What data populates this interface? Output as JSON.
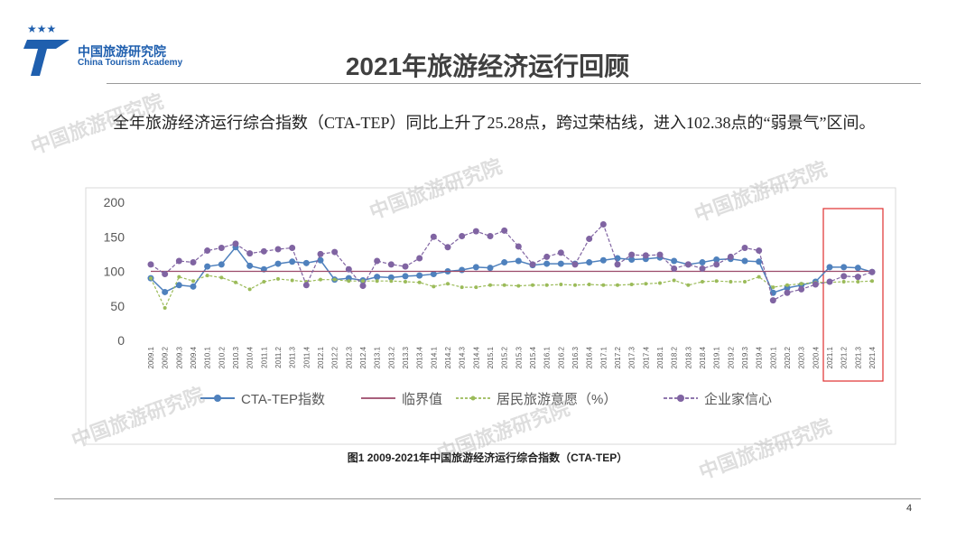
{
  "header": {
    "logo_cn": "中国旅游研究院",
    "logo_en": "China Tourism Academy",
    "title": "2021年旅游经济运行回顾"
  },
  "body": "全年旅游经济运行综合指数（CTA-TEP）同比上升了25.28点，跨过荣枯线，进入102.38点的“弱景气”区间。",
  "caption": "图1  2009-2021年中国旅游经济运行综合指数（CTA-TEP）",
  "page_number": "4",
  "watermark": "中国旅游研究院",
  "chart_data": {
    "type": "line",
    "categories": [
      "2009.1",
      "2009.2",
      "2009.3",
      "2009.4",
      "2010.1",
      "2010.2",
      "2010.3",
      "2010.4",
      "2011.1",
      "2011.2",
      "2011.3",
      "2011.4",
      "2012.1",
      "2012.2",
      "2012.3",
      "2012.4",
      "2013.1",
      "2013.2",
      "2013.3",
      "2013.4",
      "2014.1",
      "2014.2",
      "2014.3",
      "2014.4",
      "2015.1",
      "2015.2",
      "2015.3",
      "2015.4",
      "2016.1",
      "2016.2",
      "2016.3",
      "2016.4",
      "2017.1",
      "2017.2",
      "2017.3",
      "2017.4",
      "2018.1",
      "2018.2",
      "2018.3",
      "2018.4",
      "2019.1",
      "2019.2",
      "2019.3",
      "2019.4",
      "2020.1",
      "2020.2",
      "2020.3",
      "2020.4",
      "2021.1",
      "2021.2",
      "2021.3",
      "2021.4"
    ],
    "series": [
      {
        "name": "CTA-TEP指数",
        "color": "#4f81bd",
        "values": [
          90,
          70,
          80,
          78,
          107,
          110,
          135,
          108,
          103,
          111,
          114,
          112,
          116,
          88,
          90,
          87,
          92,
          91,
          93,
          94,
          96,
          100,
          102,
          106,
          105,
          113,
          115,
          109,
          111,
          111,
          111,
          113,
          116,
          119,
          117,
          118,
          120,
          115,
          110,
          113,
          117,
          118,
          115,
          114,
          69,
          76,
          80,
          85,
          106,
          106,
          105,
          99
        ]
      },
      {
        "name": "临界值",
        "color": "#9b4a6a",
        "values": [
          100,
          100,
          100,
          100,
          100,
          100,
          100,
          100,
          100,
          100,
          100,
          100,
          100,
          100,
          100,
          100,
          100,
          100,
          100,
          100,
          100,
          100,
          100,
          100,
          100,
          100,
          100,
          100,
          100,
          100,
          100,
          100,
          100,
          100,
          100,
          100,
          100,
          100,
          100,
          100,
          100,
          100,
          100,
          100,
          100,
          100,
          100,
          100,
          100,
          100,
          100,
          100
        ]
      },
      {
        "name": "居民旅游意愿（%）",
        "color": "#9bbb59",
        "values": [
          90,
          47,
          92,
          86,
          94,
          91,
          84,
          74,
          85,
          89,
          87,
          85,
          88,
          88,
          86,
          86,
          86,
          86,
          85,
          84,
          78,
          82,
          77,
          77,
          80,
          80,
          79,
          80,
          80,
          81,
          80,
          81,
          80,
          80,
          81,
          82,
          83,
          87,
          80,
          85,
          86,
          85,
          85,
          92,
          77,
          80,
          82,
          84,
          84,
          85,
          85,
          86
        ]
      },
      {
        "name": "企业家信心",
        "color": "#8064a2",
        "values": [
          110,
          96,
          115,
          113,
          130,
          134,
          140,
          126,
          129,
          132,
          134,
          80,
          125,
          128,
          103,
          79,
          115,
          110,
          107,
          119,
          150,
          135,
          151,
          158,
          151,
          159,
          136,
          110,
          121,
          127,
          110,
          147,
          168,
          110,
          124,
          123,
          124,
          104,
          110,
          104,
          110,
          121,
          134,
          130,
          58,
          69,
          74,
          81,
          85,
          93,
          92,
          99
        ]
      }
    ],
    "ylim": [
      0,
      200
    ],
    "yticks": [
      0,
      50,
      100,
      150,
      200
    ],
    "grid": false
  }
}
